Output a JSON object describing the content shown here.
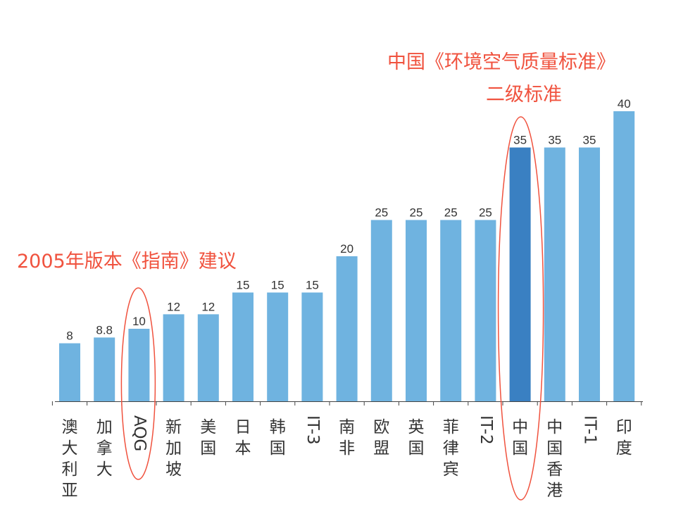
{
  "chart_data": {
    "type": "bar",
    "categories": [
      "澳大利亚",
      "加拿大",
      "AQG",
      "新加坡",
      "美国",
      "日本",
      "韩国",
      "IT-3",
      "南非",
      "欧盟",
      "英国",
      "菲律宾",
      "IT-2",
      "中国",
      "中国香港",
      "IT-1",
      "印度"
    ],
    "values": [
      8,
      8.8,
      10,
      12,
      12,
      15,
      15,
      15,
      20,
      25,
      25,
      25,
      25,
      35,
      35,
      35,
      40
    ],
    "value_labels": [
      "8",
      "8.8",
      "10",
      "12",
      "12",
      "15",
      "15",
      "15",
      "20",
      "25",
      "25",
      "25",
      "25",
      "35",
      "35",
      "35",
      "40"
    ],
    "highlight_index": 13,
    "ylim": [
      0,
      40
    ],
    "title": "",
    "xlabel": "",
    "ylabel": "",
    "grid": false,
    "annotations": [
      {
        "text": "2005年版本《指南》建议",
        "target_index": 2
      },
      {
        "lines": [
          "中国《环境空气质量标准》",
          "二级标准"
        ],
        "target_index": 13
      }
    ]
  },
  "colors": {
    "bar": "#6fb3e0",
    "highlight_bar": "#3a80c2",
    "annotation": "#f0523e",
    "axis": "#444444"
  }
}
